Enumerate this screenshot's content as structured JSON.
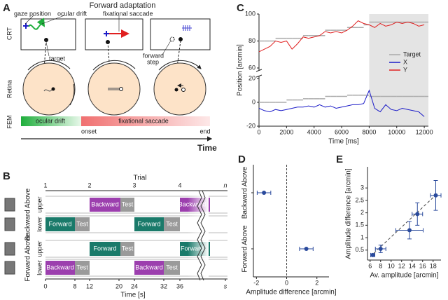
{
  "panel_a": {
    "label": "A",
    "title": "Forward adaptation",
    "labels": {
      "gaze_position": "gaze position",
      "ocular_drift": "ocular drift",
      "fixational_saccade": "fixational saccade",
      "target": "target",
      "forward_step": [
        "forward",
        "step"
      ]
    },
    "rows": [
      "CRT",
      "Retina",
      "FEM"
    ],
    "fem": [
      "ocular drift",
      "fixational saccade"
    ],
    "markers": [
      "onset",
      "end"
    ],
    "time": "Time"
  },
  "panel_b": {
    "label": "B",
    "trial_title": "Trial",
    "trials": [
      "1",
      "2",
      "3",
      "4",
      "n"
    ],
    "groups": [
      {
        "name": "Backward Above",
        "rows": [
          {
            "label": "upper",
            "blocks": [
              "Backward",
              "Test",
              "Backward"
            ]
          },
          {
            "label": "lower",
            "blocks": [
              "Forward",
              "Test",
              "Forward",
              "Test"
            ]
          }
        ]
      },
      {
        "name": "Forward Above",
        "rows": [
          {
            "label": "upper",
            "blocks": [
              "Forward",
              "Test",
              "Forward"
            ]
          },
          {
            "label": "lower",
            "blocks": [
              "Backward",
              "Test",
              "Backward",
              "Test"
            ]
          }
        ]
      }
    ],
    "time_ticks": [
      "0",
      "8",
      "12",
      "20",
      "24",
      "32",
      "36",
      "s"
    ],
    "time_label": "Time [s]"
  },
  "chart_data": [
    {
      "type": "line",
      "panel_label": "C",
      "xlabel": "Time [ms]",
      "ylabel": "Position [arcmin]",
      "x": [
        0,
        400,
        800,
        1200,
        1600,
        2000,
        2400,
        2800,
        3200,
        3600,
        4000,
        4400,
        4800,
        5200,
        5600,
        6000,
        6400,
        6800,
        7200,
        7600,
        8000,
        8400,
        8800,
        9200,
        9600,
        10000,
        10400,
        10800,
        11200,
        11600,
        12000
      ],
      "series": [
        {
          "name": "Target",
          "color": "#aaaaaa",
          "step": true,
          "values": [
            80,
            80,
            80,
            82,
            82,
            82,
            82,
            82,
            84,
            84,
            84,
            84,
            88,
            88,
            88,
            88,
            90,
            90,
            90,
            92,
            94,
            94,
            94,
            94,
            94,
            94,
            94,
            94,
            94,
            94,
            94
          ]
        },
        {
          "color": "#aaaaaa",
          "step": true,
          "values": [
            0,
            0,
            0,
            0,
            0,
            2,
            2,
            2,
            3,
            3,
            3,
            3,
            5,
            5,
            5,
            5,
            6,
            6,
            6,
            6,
            5,
            5,
            5,
            5,
            5,
            5,
            5,
            5,
            5,
            5,
            5
          ]
        },
        {
          "name": "X",
          "color": "#1c1cc8",
          "values": [
            -5,
            -7,
            -8,
            -6,
            -7,
            -6,
            -5,
            -4,
            -4,
            -3,
            -4,
            -2,
            -4,
            -3,
            -5,
            -4,
            -3,
            -2,
            -2,
            -1,
            10,
            -5,
            -8,
            -2,
            -6,
            -7,
            -5,
            -6,
            -7,
            -8,
            -12
          ]
        },
        {
          "name": "Y",
          "color": "#e02020",
          "values": [
            72,
            74,
            76,
            80,
            79,
            80,
            74,
            78,
            83,
            82,
            83,
            84,
            87,
            86,
            87,
            86,
            88,
            91,
            95,
            93,
            92,
            90,
            93,
            91,
            92,
            94,
            93,
            94,
            93,
            91,
            92
          ]
        }
      ],
      "xlim": [
        0,
        12300
      ],
      "xticks": [
        0,
        2000,
        4000,
        6000,
        8000,
        10000,
        12000
      ],
      "ylim": [
        -20,
        100
      ],
      "ybreak": [
        20,
        60
      ],
      "yticks": [
        -20,
        0,
        20,
        60,
        80,
        100
      ],
      "shade": [
        8000,
        12300
      ],
      "legend": "right"
    },
    {
      "type": "errorbar",
      "panel_label": "D",
      "categories": [
        "Backward Above",
        "Forward Above"
      ],
      "values": [
        -1.5,
        1.3
      ],
      "errors": [
        0.45,
        0.45
      ],
      "color": "#2a4a9c",
      "xlim": [
        -2.2,
        2.8
      ],
      "xticks": [
        -2,
        0,
        2
      ],
      "xlabel": "Amplitude difference [arcmin]",
      "zero_line": true
    },
    {
      "type": "scatter",
      "panel_label": "E",
      "x": [
        6.5,
        8,
        13.5,
        15,
        18.5
      ],
      "values": [
        0.3,
        0.55,
        1.3,
        1.95,
        2.7
      ],
      "xerr": [
        0.4,
        1.0,
        2.6,
        1.0,
        1.0
      ],
      "yerr": [
        0.05,
        0.15,
        0.35,
        0.45,
        0.6
      ],
      "color": "#2a4a9c",
      "xlim": [
        5.5,
        19.5
      ],
      "xticks": [
        6,
        8,
        10,
        12,
        14,
        16,
        18
      ],
      "ylim": [
        0.1,
        3.85
      ],
      "yticks": [
        0.5,
        1,
        1.5,
        2,
        2.5,
        3
      ],
      "xlabel": "Av. amplitude [arcmin]",
      "ylabel": "Amplitude difference [arcmin]"
    }
  ]
}
